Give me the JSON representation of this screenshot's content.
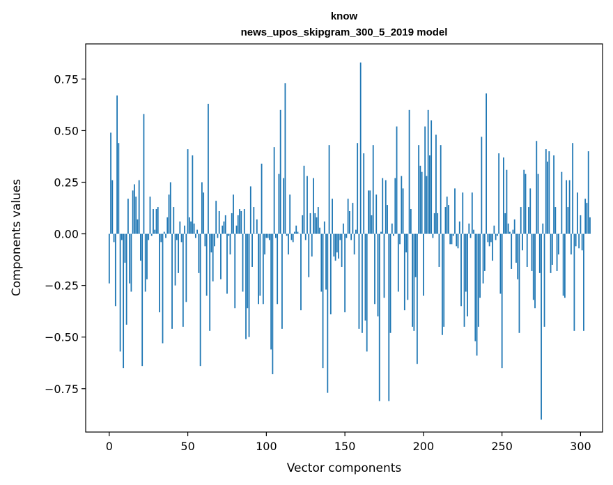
{
  "chart_data": {
    "type": "bar",
    "title": "know",
    "subtitle": "news_upos_skipgram_300_5_2019 model",
    "xlabel": "Vector components",
    "ylabel": "Components values",
    "xlim": [
      -15,
      314
    ],
    "ylim": [
      -0.96,
      0.92
    ],
    "xticks": [
      0,
      50,
      100,
      150,
      200,
      250,
      300
    ],
    "xtick_labels": [
      "0",
      "50",
      "100",
      "150",
      "200",
      "250",
      "300"
    ],
    "yticks": [
      0.75,
      0.5,
      0.25,
      0.0,
      -0.25,
      -0.5,
      -0.75
    ],
    "ytick_labels": [
      "0.75",
      "0.50",
      "0.25",
      "0.00",
      "−0.25",
      "−0.50",
      "−0.75"
    ],
    "grid": false,
    "bar_color": "#1f77b4",
    "values": [
      -0.24,
      0.49,
      0.26,
      -0.04,
      -0.35,
      0.67,
      0.44,
      -0.57,
      -0.03,
      -0.65,
      -0.14,
      -0.44,
      0.17,
      -0.24,
      -0.28,
      0.21,
      0.24,
      0.18,
      0.07,
      0.26,
      -0.13,
      -0.64,
      0.58,
      -0.28,
      -0.22,
      -0.03,
      0.18,
      -0.01,
      0.12,
      0.02,
      0.12,
      0.13,
      -0.38,
      -0.04,
      -0.53,
      0.01,
      -0.02,
      0.08,
      0.19,
      0.25,
      -0.46,
      0.13,
      -0.25,
      -0.03,
      -0.19,
      0.06,
      -0.04,
      -0.45,
      0.04,
      -0.33,
      0.41,
      0.08,
      0.06,
      0.38,
      0.05,
      -0.02,
      0.02,
      -0.19,
      -0.64,
      0.25,
      0.2,
      -0.06,
      -0.3,
      0.63,
      -0.47,
      -0.09,
      -0.23,
      -0.06,
      0.16,
      -0.02,
      0.11,
      -0.22,
      0.04,
      0.06,
      0.09,
      -0.29,
      -0.01,
      -0.1,
      0.1,
      0.19,
      -0.36,
      0.04,
      0.09,
      0.12,
      0.11,
      -0.28,
      0.12,
      -0.51,
      -0.36,
      -0.5,
      0.23,
      -0.16,
      0.13,
      0.0,
      0.07,
      -0.34,
      -0.3,
      0.34,
      -0.34,
      -0.1,
      -0.02,
      -0.02,
      -0.03,
      -0.56,
      -0.68,
      0.42,
      -0.02,
      -0.34,
      0.29,
      0.6,
      -0.46,
      0.27,
      0.73,
      -0.01,
      -0.1,
      0.19,
      -0.03,
      -0.04,
      0.01,
      0.04,
      0.01,
      0.0,
      -0.37,
      0.09,
      0.33,
      -0.03,
      0.28,
      -0.21,
      0.1,
      -0.11,
      0.27,
      0.1,
      0.08,
      0.13,
      0.03,
      -0.28,
      -0.65,
      0.06,
      -0.27,
      -0.77,
      0.43,
      -0.39,
      0.17,
      -0.11,
      -0.13,
      -0.09,
      -0.12,
      -0.03,
      -0.16,
      0.05,
      -0.38,
      -0.02,
      0.17,
      0.11,
      -0.03,
      0.15,
      -0.1,
      0.02,
      0.44,
      -0.46,
      0.83,
      -0.48,
      0.39,
      -0.42,
      -0.57,
      0.21,
      0.21,
      0.09,
      0.43,
      -0.34,
      0.19,
      -0.4,
      -0.81,
      0.01,
      0.27,
      -0.31,
      0.26,
      0.14,
      -0.81,
      -0.48,
      0.05,
      -0.01,
      0.27,
      0.52,
      -0.28,
      -0.05,
      0.28,
      0.22,
      -0.37,
      -0.09,
      -0.32,
      0.6,
      0.12,
      -0.45,
      -0.47,
      -0.21,
      -0.63,
      0.43,
      0.33,
      0.3,
      -0.3,
      0.52,
      0.28,
      0.6,
      0.38,
      0.55,
      -0.02,
      0.1,
      0.48,
      0.1,
      -0.16,
      0.43,
      -0.49,
      -0.45,
      0.13,
      0.18,
      0.14,
      -0.05,
      -0.05,
      -0.01,
      0.22,
      -0.06,
      -0.07,
      0.06,
      -0.35,
      0.2,
      -0.45,
      -0.28,
      -0.4,
      0.05,
      -0.02,
      0.2,
      0.02,
      -0.52,
      -0.59,
      -0.45,
      -0.31,
      0.47,
      -0.24,
      -0.18,
      0.68,
      -0.04,
      -0.06,
      -0.04,
      -0.13,
      0.04,
      -0.03,
      -0.01,
      0.39,
      -0.29,
      -0.65,
      0.37,
      0.1,
      0.31,
      0.05,
      0.01,
      -0.17,
      0.02,
      0.07,
      -0.14,
      -0.22,
      -0.48,
      0.13,
      -0.08,
      0.31,
      0.29,
      -0.16,
      0.13,
      0.22,
      -0.18,
      -0.32,
      -0.36,
      0.45,
      0.29,
      -0.19,
      -0.9,
      0.05,
      -0.45,
      0.41,
      0.35,
      0.4,
      -0.19,
      -0.15,
      0.38,
      0.13,
      -0.18,
      -0.1,
      0.0,
      0.3,
      -0.3,
      -0.31,
      0.26,
      0.13,
      0.26,
      -0.1,
      0.44,
      -0.47,
      -0.06,
      0.2,
      -0.07,
      0.09,
      -0.08,
      -0.47,
      0.17,
      0.15,
      0.4,
      0.08
    ]
  }
}
